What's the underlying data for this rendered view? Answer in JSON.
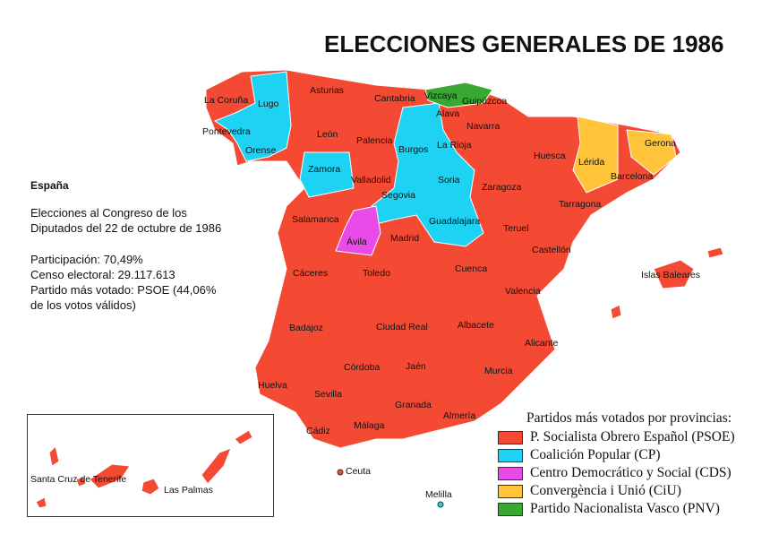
{
  "title": "ELECCIONES GENERALES DE 1986",
  "info": {
    "country": "España",
    "line1": "Elecciones al Congreso de los",
    "line2": "Diputados del 22 de octubre de 1986",
    "participation": "Participación: 70,49%",
    "census": "Censo electoral: 29.117.613",
    "winner1": "Partido más votado: PSOE (44,06%",
    "winner2": "de los votos válidos)"
  },
  "colors": {
    "PSOE": "#f44a33",
    "CP": "#1ed2f4",
    "CDS": "#e84be8",
    "CiU": "#ffc43a",
    "PNV": "#38a832"
  },
  "provinces": [
    {
      "name": "La Coruña",
      "party": "PSOE"
    },
    {
      "name": "Lugo",
      "party": "CP"
    },
    {
      "name": "Asturias",
      "party": "PSOE"
    },
    {
      "name": "Cantabria",
      "party": "PSOE"
    },
    {
      "name": "Vizcaya",
      "party": "PNV"
    },
    {
      "name": "Guipúzcoa",
      "party": "PNV"
    },
    {
      "name": "Álava",
      "party": "CP"
    },
    {
      "name": "Navarra",
      "party": "PSOE"
    },
    {
      "name": "Pontevedra",
      "party": "CP"
    },
    {
      "name": "León",
      "party": "PSOE"
    },
    {
      "name": "Palencia",
      "party": "PSOE"
    },
    {
      "name": "Burgos",
      "party": "CP"
    },
    {
      "name": "La Rioja",
      "party": "PSOE"
    },
    {
      "name": "Orense",
      "party": "CP"
    },
    {
      "name": "Huesca",
      "party": "PSOE"
    },
    {
      "name": "Lérida",
      "party": "CiU"
    },
    {
      "name": "Gerona",
      "party": "CiU"
    },
    {
      "name": "Barcelona",
      "party": "PSOE"
    },
    {
      "name": "Zamora",
      "party": "CP"
    },
    {
      "name": "Valladolid",
      "party": "PSOE"
    },
    {
      "name": "Soria",
      "party": "CP"
    },
    {
      "name": "Zaragoza",
      "party": "PSOE"
    },
    {
      "name": "Segovia",
      "party": "CP"
    },
    {
      "name": "Tarragona",
      "party": "PSOE"
    },
    {
      "name": "Salamanca",
      "party": "PSOE"
    },
    {
      "name": "Guadalajara",
      "party": "CP"
    },
    {
      "name": "Teruel",
      "party": "PSOE"
    },
    {
      "name": "Ávila",
      "party": "CDS"
    },
    {
      "name": "Madrid",
      "party": "PSOE"
    },
    {
      "name": "Castellón",
      "party": "PSOE"
    },
    {
      "name": "Cáceres",
      "party": "PSOE"
    },
    {
      "name": "Toledo",
      "party": "PSOE"
    },
    {
      "name": "Cuenca",
      "party": "PSOE"
    },
    {
      "name": "Islas Baleares",
      "party": "PSOE"
    },
    {
      "name": "Valencia",
      "party": "PSOE"
    },
    {
      "name": "Badajoz",
      "party": "PSOE"
    },
    {
      "name": "Ciudad Real",
      "party": "PSOE"
    },
    {
      "name": "Albacete",
      "party": "PSOE"
    },
    {
      "name": "Alicante",
      "party": "PSOE"
    },
    {
      "name": "Córdoba",
      "party": "PSOE"
    },
    {
      "name": "Jaén",
      "party": "PSOE"
    },
    {
      "name": "Huelva",
      "party": "PSOE"
    },
    {
      "name": "Sevilla",
      "party": "PSOE"
    },
    {
      "name": "Murcia",
      "party": "PSOE"
    },
    {
      "name": "Granada",
      "party": "PSOE"
    },
    {
      "name": "Almería",
      "party": "PSOE"
    },
    {
      "name": "Cádiz",
      "party": "PSOE"
    },
    {
      "name": "Málaga",
      "party": "PSOE"
    },
    {
      "name": "Ceuta",
      "party": "PSOE"
    },
    {
      "name": "Melilla",
      "party": "CP"
    },
    {
      "name": "Santa Cruz de Tenerife",
      "party": "PSOE"
    },
    {
      "name": "Las Palmas",
      "party": "PSOE"
    }
  ],
  "legend": {
    "title": "Partidos más votados por provincias:",
    "items": [
      {
        "label": "P. Socialista Obrero Español (PSOE)",
        "color": "#f44a33"
      },
      {
        "label": "Coalición Popular (CP)",
        "color": "#1ed2f4"
      },
      {
        "label": "Centro Democrático y Social (CDS)",
        "color": "#e84be8"
      },
      {
        "label": "Convergència i Unió (CiU)",
        "color": "#ffc43a"
      },
      {
        "label": "Partido Nacionalista Vasco (PNV)",
        "color": "#38a832"
      }
    ]
  }
}
